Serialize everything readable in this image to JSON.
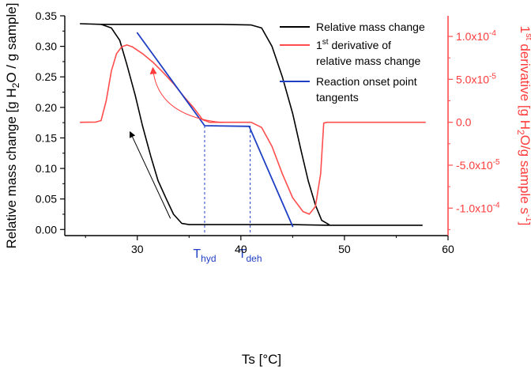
{
  "chart_data": {
    "type": "line",
    "xlabel": "Ts [°C]",
    "ylabel_left": "Relative mass change [g H2O / g sample]",
    "ylabel_right": "1st derivative [g H2O/g sample s-1]",
    "xlim": [
      23,
      60
    ],
    "ylim_left": [
      -0.01,
      0.35
    ],
    "ylim_right": [
      -0.000132,
      0.000124
    ],
    "x_ticks": [
      30,
      40,
      50,
      60
    ],
    "y_ticks_left": [
      {
        "value": 0.0,
        "label": "0.00"
      },
      {
        "value": 0.05,
        "label": "0.05"
      },
      {
        "value": 0.1,
        "label": "0.10"
      },
      {
        "value": 0.15,
        "label": "0.15"
      },
      {
        "value": 0.2,
        "label": "0.20"
      },
      {
        "value": 0.25,
        "label": "0.25"
      },
      {
        "value": 0.3,
        "label": "0.30"
      },
      {
        "value": 0.35,
        "label": "0.35"
      }
    ],
    "y_ticks_right": [
      {
        "value": 0.0001,
        "label": "1.0x10-4"
      },
      {
        "value": 5e-05,
        "label": "5.0x10-5"
      },
      {
        "value": 0.0,
        "label": "0.0"
      },
      {
        "value": -5e-05,
        "label": "-5.0x10-5"
      },
      {
        "value": -0.0001,
        "label": "-1.0x10-4"
      }
    ],
    "legend": [
      {
        "label": "Relative mass change",
        "color": "#000000"
      },
      {
        "label": "1st derivative of relative mass change",
        "color": "#ff4d4d"
      },
      {
        "label": "Reaction onset point tangents",
        "color": "#1f3fc4"
      }
    ],
    "series": [
      {
        "name": "Relative mass change",
        "axis": "left",
        "color": "#000000",
        "points": [
          [
            24.5,
            0.337
          ],
          [
            26.5,
            0.336
          ],
          [
            27.5,
            0.33
          ],
          [
            28.3,
            0.31
          ],
          [
            29.0,
            0.27
          ],
          [
            29.8,
            0.22
          ],
          [
            30.5,
            0.17
          ],
          [
            31.3,
            0.12
          ],
          [
            32.0,
            0.08
          ],
          [
            32.8,
            0.05
          ],
          [
            33.5,
            0.025
          ],
          [
            34.3,
            0.01
          ],
          [
            35.0,
            0.008
          ],
          [
            45.0,
            0.008
          ],
          [
            48.5,
            0.007
          ],
          [
            57.5,
            0.007
          ]
        ]
      },
      {
        "name": "Relative mass change",
        "axis": "left",
        "color": "#000000",
        "points": [
          [
            26.5,
            0.336
          ],
          [
            38.0,
            0.336
          ],
          [
            41.0,
            0.335
          ],
          [
            42.0,
            0.33
          ],
          [
            43.0,
            0.3
          ],
          [
            44.0,
            0.25
          ],
          [
            45.0,
            0.19
          ],
          [
            45.8,
            0.13
          ],
          [
            46.5,
            0.08
          ],
          [
            47.2,
            0.04
          ],
          [
            47.8,
            0.015
          ],
          [
            48.5,
            0.008
          ]
        ]
      },
      {
        "name": "1st derivative of relative mass change",
        "axis": "right",
        "color": "#ff4d4d",
        "points": [
          [
            24.5,
            0.0
          ],
          [
            26.0,
            2e-07
          ],
          [
            26.5,
            2e-06
          ],
          [
            27.0,
            2.5e-05
          ],
          [
            27.5,
            6e-05
          ],
          [
            28.0,
            8e-05
          ],
          [
            28.5,
            8.8e-05
          ],
          [
            29.0,
            9e-05
          ],
          [
            29.5,
            8.8e-05
          ],
          [
            30.5,
            8e-05
          ],
          [
            31.5,
            7e-05
          ],
          [
            32.5,
            5.8e-05
          ],
          [
            33.5,
            4.5e-05
          ],
          [
            34.5,
            3e-05
          ],
          [
            35.5,
            1.6e-05
          ],
          [
            36.3,
            3e-06
          ],
          [
            37.0,
            0.0
          ],
          [
            41.0,
            0.0
          ],
          [
            42.0,
            -6e-06
          ],
          [
            43.0,
            -2.8e-05
          ],
          [
            44.0,
            -6e-05
          ],
          [
            45.0,
            -8.8e-05
          ],
          [
            46.0,
            -0.000104
          ],
          [
            46.6,
            -0.000107
          ],
          [
            47.2,
            -9.8e-05
          ],
          [
            47.7,
            -6e-05
          ],
          [
            48.0,
            -1e-06
          ],
          [
            48.3,
            0.0
          ],
          [
            57.8,
            0.0
          ]
        ]
      },
      {
        "name": "Reaction onset point tangents",
        "axis": "left",
        "color": "#1f3fc4",
        "points": [
          [
            30.0,
            0.322
          ],
          [
            36.5,
            0.17
          ],
          [
            40.8,
            0.169
          ],
          [
            45.0,
            0.005
          ]
        ]
      }
    ],
    "reference_lines": [
      {
        "x": 36.5,
        "label": "Thyd",
        "main": "T",
        "sub": "hyd"
      },
      {
        "x": 40.9,
        "label": "Tdeh",
        "main": "T",
        "sub": "deh"
      }
    ],
    "annotations": [
      {
        "type": "arrow",
        "axis": "left",
        "color": "#000000",
        "from": [
          33.2,
          0.018
        ],
        "to": [
          29.3,
          0.16
        ]
      },
      {
        "type": "arrow",
        "axis": "left",
        "color": "#ff3b3b",
        "from": [
          38.3,
          0.175
        ],
        "to": [
          31.5,
          0.265
        ]
      }
    ]
  }
}
